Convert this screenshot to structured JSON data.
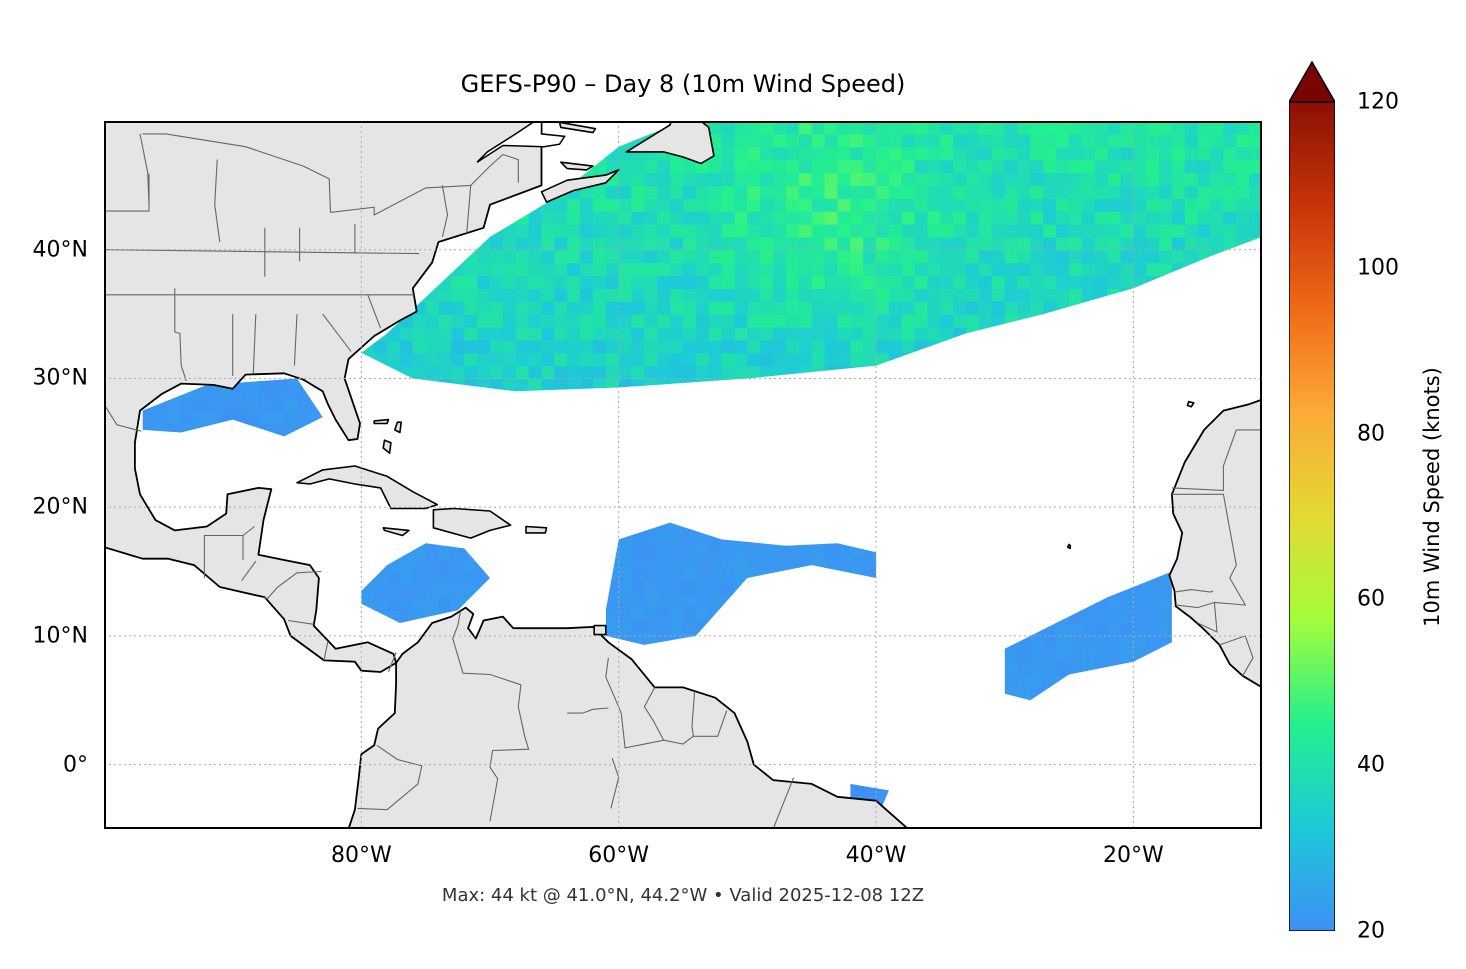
{
  "title": "GEFS-P90 – Day 8 (10m Wind Speed)",
  "footnote": "Max: 44 kt @ 41.0°N, 44.2°W • Valid 2025-12-08 12Z",
  "map": {
    "projection": "PlateCarree",
    "lon_range": [
      -100,
      -10
    ],
    "lat_range": [
      -5,
      50
    ],
    "land_color": "#e5e5e5",
    "grid": true,
    "lon_ticks": [
      {
        "value": -80,
        "label": "80°W"
      },
      {
        "value": -60,
        "label": "60°W"
      },
      {
        "value": -40,
        "label": "40°W"
      },
      {
        "value": -20,
        "label": "20°W"
      }
    ],
    "lat_ticks": [
      {
        "value": 40,
        "label": "40°N"
      },
      {
        "value": 30,
        "label": "30°N"
      },
      {
        "value": 20,
        "label": "20°N"
      },
      {
        "value": 10,
        "label": "10°N"
      },
      {
        "value": 0,
        "label": "0°"
      }
    ]
  },
  "colorbar": {
    "label": "10m Wind Speed (knots)",
    "min": 20,
    "max": 120,
    "extend": "max",
    "ticks": [
      "20",
      "40",
      "60",
      "80",
      "100",
      "120"
    ],
    "colors": [
      "#3e8ff5",
      "#1ec9d8",
      "#23f08e",
      "#a4fc3c",
      "#e3d934",
      "#fbab36",
      "#f06a17",
      "#c7340a",
      "#8a1004",
      "#7a0403"
    ]
  },
  "chart_data": {
    "type": "heatmap",
    "title": "GEFS-P90 – Day 8 (10m Wind Speed)",
    "units": "knots",
    "max": {
      "value": 44,
      "lat": 41.0,
      "lon": -44.2
    },
    "valid": "2025-12-08 12Z",
    "regions": [
      {
        "area": "North Atlantic",
        "lat_range": [
          29,
          50
        ],
        "lon_range": [
          -78,
          -10
        ],
        "typical_kt": [
          28,
          44
        ]
      },
      {
        "area": "Gulf of Mexico",
        "lat_range": [
          24,
          30
        ],
        "lon_range": [
          -97,
          -81
        ],
        "typical_kt": [
          20,
          24
        ]
      },
      {
        "area": "Caribbean",
        "lat_range": [
          11,
          17
        ],
        "lon_range": [
          -80,
          -72
        ],
        "typical_kt": [
          20,
          24
        ]
      },
      {
        "area": "Tropical Atlantic",
        "lat_range": [
          9,
          19
        ],
        "lon_range": [
          -62,
          -40
        ],
        "typical_kt": [
          20,
          24
        ]
      },
      {
        "area": "Eastern Tropical Atlantic",
        "lat_range": [
          5,
          15
        ],
        "lon_range": [
          -30,
          -17
        ],
        "typical_kt": [
          20,
          24
        ]
      },
      {
        "area": "Equatorial South Atlantic",
        "lat_range": [
          -4,
          -2
        ],
        "lon_range": [
          -42,
          -39
        ],
        "typical_kt": [
          20,
          22
        ]
      }
    ]
  }
}
